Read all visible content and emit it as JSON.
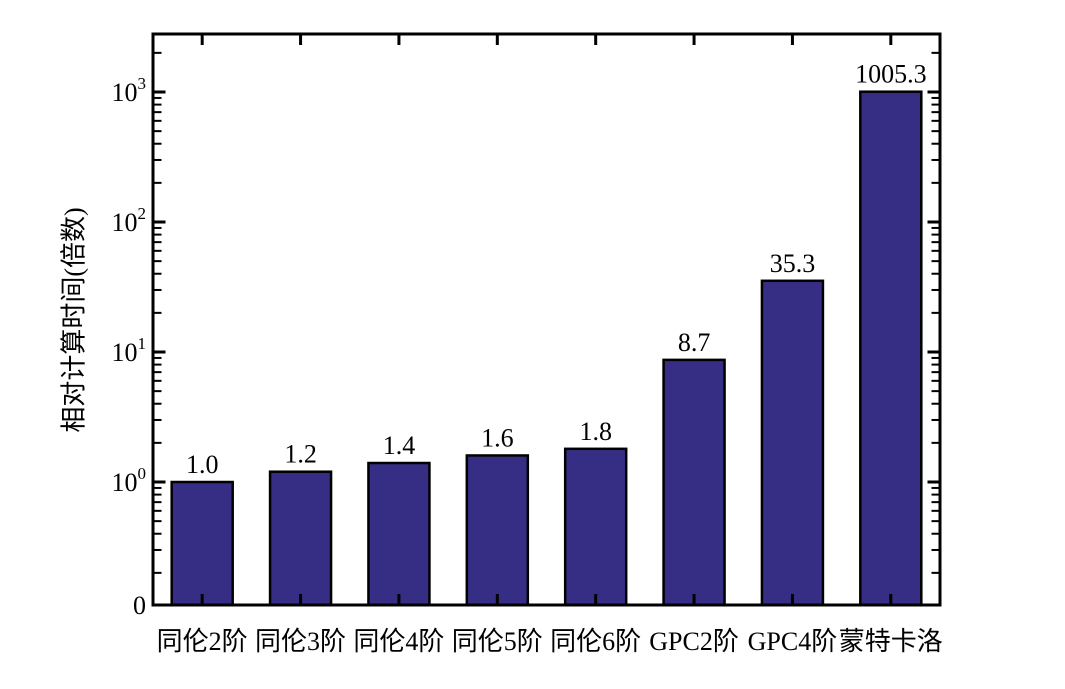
{
  "chart_data": {
    "type": "bar",
    "title": "",
    "categories": [
      "同伦2阶",
      "同伦3阶",
      "同伦4阶",
      "同伦5阶",
      "同伦6阶",
      "GPC2阶",
      "GPC4阶",
      "蒙特卡洛"
    ],
    "values": [
      1.0,
      1.2,
      1.4,
      1.6,
      1.8,
      8.7,
      35.3,
      1005.3
    ],
    "value_labels": [
      "1.0",
      "1.2",
      "1.4",
      "1.6",
      "1.8",
      "8.7",
      "35.3",
      "1005.3"
    ],
    "xlabel": "",
    "ylabel": "相对计算时间(倍数)",
    "yscale": "log",
    "y_tick_exponents": [
      0,
      1,
      2,
      3
    ],
    "y_tick_base": "10",
    "y_bottom_label": "0",
    "ylim": [
      0,
      3000
    ],
    "grid": false,
    "legend": null,
    "bar_color": "#362e84",
    "bar_edge_color": "#000000",
    "axis_color": "#000000",
    "text_color": "#000000",
    "background": "#ffffff"
  }
}
